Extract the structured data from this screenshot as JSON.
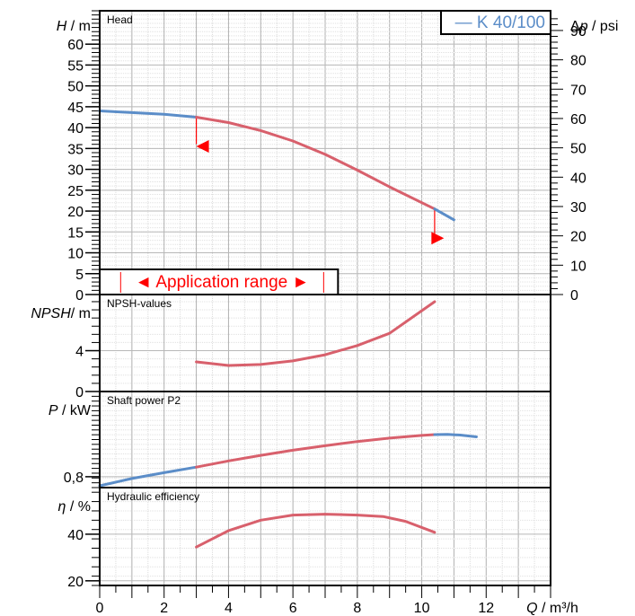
{
  "chart_data": {
    "type": "line",
    "x_axis": {
      "label_var": "Q",
      "label_unit": " / m³/h",
      "range": [
        0,
        14
      ],
      "ticks": [
        0,
        2,
        4,
        6,
        8,
        10,
        12
      ]
    },
    "legend": {
      "label": "— K 40/100",
      "color": "#5b8dc8",
      "placement": "top-right"
    },
    "colors": {
      "operating": "#d8606c",
      "outside": "#5b8dc8",
      "marker": "#ff0000",
      "grid": "#bdbdbd"
    },
    "panels": [
      {
        "id": "head",
        "title": "Head",
        "ylabel_var": "H",
        "ylabel_unit": " / m",
        "ylim": [
          0,
          68
        ],
        "yticks": [
          0,
          5,
          10,
          15,
          20,
          25,
          30,
          35,
          40,
          45,
          50,
          55,
          60
        ],
        "y2": {
          "label_prefix": "Δ",
          "label_var": "p",
          "label_unit": " / psi",
          "factor": 1.4223,
          "ticks": [
            0,
            10,
            20,
            30,
            40,
            50,
            60,
            70,
            80,
            90
          ]
        },
        "application_range": {
          "label": "◄ Application range ►",
          "from": 0.65,
          "to": 7.4
        },
        "range_markers": [
          {
            "x": 3,
            "y": 35.5,
            "dir": "left"
          },
          {
            "x": 10.3,
            "y": 13.5,
            "dir": "right"
          }
        ],
        "range_lines": [
          {
            "x": 3,
            "y": 42.5
          },
          {
            "x": 10.4,
            "y": 20.5
          }
        ],
        "series": [
          {
            "name": "K 40/100",
            "segment": "low",
            "x": [
              0,
              1,
              2,
              3
            ],
            "y": [
              44.0,
              43.6,
              43.2,
              42.5
            ]
          },
          {
            "segment": "operating",
            "x": [
              3,
              4,
              5,
              6,
              7,
              8,
              9,
              10.4
            ],
            "y": [
              42.5,
              41.2,
              39.3,
              36.8,
              33.6,
              29.8,
              25.8,
              20.5
            ]
          },
          {
            "segment": "high",
            "x": [
              10.4,
              11.0
            ],
            "y": [
              20.5,
              17.9
            ]
          }
        ]
      },
      {
        "id": "npsh",
        "title": "NPSH-values",
        "ylabel_var": "NPSH",
        "ylabel_unit": "/ m",
        "ylim": [
          0,
          9.5
        ],
        "yticks": [
          0,
          4
        ],
        "series": [
          {
            "segment": "operating",
            "x": [
              3,
              4,
              5,
              6,
              7,
              8,
              9,
              10.4
            ],
            "y": [
              2.9,
              2.55,
              2.65,
              3.0,
              3.6,
              4.5,
              5.7,
              8.8
            ]
          }
        ]
      },
      {
        "id": "power",
        "title": "Shaft power P2",
        "ylabel_var": "P",
        "ylabel_unit": "  / kW",
        "ylim": [
          0.74,
          1.27
        ],
        "yticks": [
          0.8
        ],
        "ytick_labels": [
          "0,8"
        ],
        "series": [
          {
            "segment": "low",
            "x": [
              0,
              1,
              2,
              3
            ],
            "y": [
              0.75,
              0.79,
              0.822,
              0.853
            ]
          },
          {
            "segment": "operating",
            "x": [
              3,
              4,
              5,
              6,
              7,
              8,
              9,
              10,
              10.4
            ],
            "y": [
              0.853,
              0.887,
              0.918,
              0.946,
              0.971,
              0.994,
              1.013,
              1.028,
              1.032
            ]
          },
          {
            "segment": "high",
            "x": [
              10.4,
              10.8,
              11.2,
              11.7
            ],
            "y": [
              1.032,
              1.033,
              1.03,
              1.02
            ]
          }
        ]
      },
      {
        "id": "efficiency",
        "title": "Hydraulic efficiency",
        "ylabel_var": "η",
        "ylabel_unit": " / %",
        "ylim": [
          18,
          60
        ],
        "yticks": [
          20,
          40
        ],
        "series": [
          {
            "segment": "operating",
            "x": [
              3,
              3.5,
              4,
              5,
              6,
              7,
              8,
              8.8,
              9.5,
              10.4
            ],
            "y": [
              34.5,
              38,
              41.5,
              46,
              48.2,
              48.6,
              48.2,
              47.6,
              45.5,
              40.8
            ]
          }
        ]
      }
    ]
  }
}
